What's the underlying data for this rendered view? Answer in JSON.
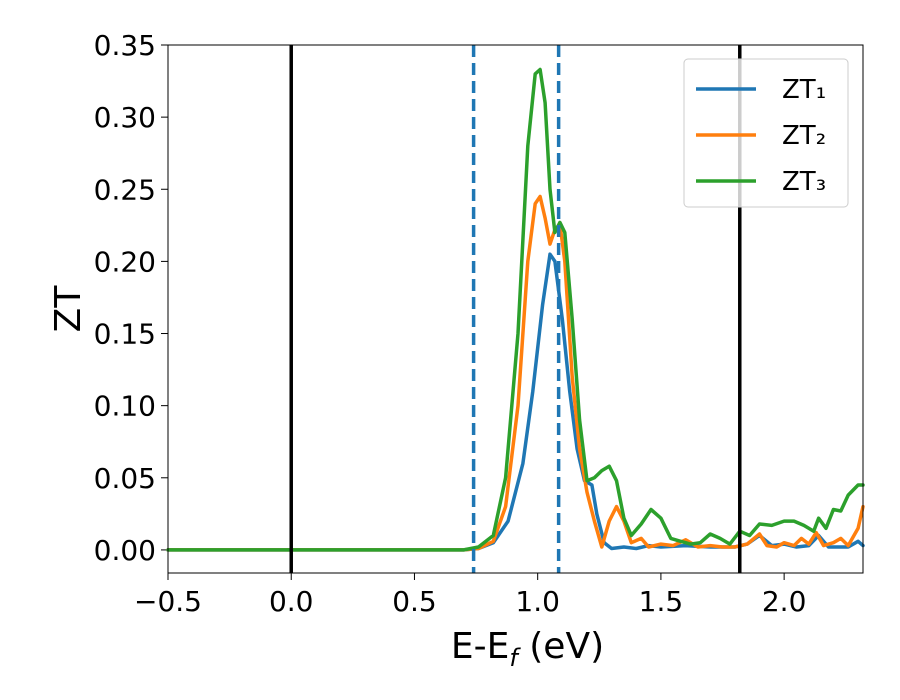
{
  "chart_data": {
    "type": "line",
    "xlabel": "E-E_f (eV)",
    "ylabel": "ZT",
    "xlim": [
      -0.5,
      2.32
    ],
    "ylim": [
      -0.016,
      0.35
    ],
    "x_ticks": [
      "−0.5",
      "0.0",
      "0.5",
      "1.0",
      "1.5",
      "2.0"
    ],
    "x_tick_values": [
      -0.5,
      0.0,
      0.5,
      1.0,
      1.5,
      2.0
    ],
    "y_ticks": [
      "0.00",
      "0.05",
      "0.10",
      "0.15",
      "0.20",
      "0.25",
      "0.30",
      "0.35"
    ],
    "y_tick_values": [
      0.0,
      0.05,
      0.1,
      0.15,
      0.2,
      0.25,
      0.3,
      0.35
    ],
    "legend_position": "top-right",
    "grid": false,
    "vertical_lines": [
      {
        "x": 0.0,
        "style": "solid",
        "color": "#000000"
      },
      {
        "x": 0.74,
        "style": "dashed",
        "color": "#1f77b4"
      },
      {
        "x": 1.085,
        "style": "dashed",
        "color": "#1f77b4"
      },
      {
        "x": 1.82,
        "style": "solid",
        "color": "#000000"
      }
    ],
    "series": [
      {
        "name": "ZT₁",
        "color": "#1f77b4",
        "points": [
          [
            -0.5,
            0
          ],
          [
            0.7,
            0
          ],
          [
            0.76,
            0.001
          ],
          [
            0.82,
            0.005
          ],
          [
            0.88,
            0.02
          ],
          [
            0.94,
            0.06
          ],
          [
            0.98,
            0.11
          ],
          [
            1.02,
            0.17
          ],
          [
            1.05,
            0.205
          ],
          [
            1.07,
            0.2
          ],
          [
            1.1,
            0.16
          ],
          [
            1.13,
            0.11
          ],
          [
            1.16,
            0.07
          ],
          [
            1.19,
            0.048
          ],
          [
            1.22,
            0.045
          ],
          [
            1.24,
            0.025
          ],
          [
            1.27,
            0.005
          ],
          [
            1.3,
            0.001
          ],
          [
            1.35,
            0.002
          ],
          [
            1.4,
            0.001
          ],
          [
            1.45,
            0.003
          ],
          [
            1.5,
            0.002
          ],
          [
            1.6,
            0.003
          ],
          [
            1.7,
            0.002
          ],
          [
            1.8,
            0.002
          ],
          [
            1.85,
            0.004
          ],
          [
            1.9,
            0.01
          ],
          [
            1.95,
            0.003
          ],
          [
            2.0,
            0.004
          ],
          [
            2.05,
            0.002
          ],
          [
            2.1,
            0.003
          ],
          [
            2.14,
            0.01
          ],
          [
            2.18,
            0.002
          ],
          [
            2.22,
            0.002
          ],
          [
            2.26,
            0.002
          ],
          [
            2.3,
            0.006
          ],
          [
            2.32,
            0.003
          ]
        ]
      },
      {
        "name": "ZT₂",
        "color": "#ff7f0e",
        "points": [
          [
            -0.5,
            0
          ],
          [
            0.7,
            0
          ],
          [
            0.76,
            0.001
          ],
          [
            0.82,
            0.006
          ],
          [
            0.87,
            0.03
          ],
          [
            0.92,
            0.1
          ],
          [
            0.96,
            0.2
          ],
          [
            0.99,
            0.24
          ],
          [
            1.01,
            0.245
          ],
          [
            1.03,
            0.23
          ],
          [
            1.05,
            0.212
          ],
          [
            1.07,
            0.222
          ],
          [
            1.09,
            0.226
          ],
          [
            1.11,
            0.2
          ],
          [
            1.14,
            0.12
          ],
          [
            1.17,
            0.07
          ],
          [
            1.2,
            0.04
          ],
          [
            1.23,
            0.02
          ],
          [
            1.26,
            0.002
          ],
          [
            1.29,
            0.02
          ],
          [
            1.32,
            0.03
          ],
          [
            1.35,
            0.02
          ],
          [
            1.38,
            0.005
          ],
          [
            1.42,
            0.008
          ],
          [
            1.45,
            0.002
          ],
          [
            1.5,
            0.004
          ],
          [
            1.55,
            0.003
          ],
          [
            1.6,
            0.007
          ],
          [
            1.65,
            0.002
          ],
          [
            1.7,
            0.003
          ],
          [
            1.75,
            0.002
          ],
          [
            1.8,
            0.002
          ],
          [
            1.85,
            0.004
          ],
          [
            1.9,
            0.011
          ],
          [
            1.93,
            0.003
          ],
          [
            1.97,
            0.002
          ],
          [
            2.0,
            0.005
          ],
          [
            2.04,
            0.003
          ],
          [
            2.07,
            0.008
          ],
          [
            2.1,
            0.004
          ],
          [
            2.13,
            0.012
          ],
          [
            2.16,
            0.003
          ],
          [
            2.2,
            0.005
          ],
          [
            2.23,
            0.008
          ],
          [
            2.26,
            0.003
          ],
          [
            2.3,
            0.015
          ],
          [
            2.32,
            0.03
          ]
        ]
      },
      {
        "name": "ZT₃",
        "color": "#2ca02c",
        "points": [
          [
            -0.5,
            0
          ],
          [
            0.7,
            0
          ],
          [
            0.76,
            0.002
          ],
          [
            0.82,
            0.01
          ],
          [
            0.87,
            0.05
          ],
          [
            0.92,
            0.15
          ],
          [
            0.96,
            0.28
          ],
          [
            0.99,
            0.33
          ],
          [
            1.01,
            0.333
          ],
          [
            1.03,
            0.31
          ],
          [
            1.05,
            0.25
          ],
          [
            1.07,
            0.22
          ],
          [
            1.09,
            0.227
          ],
          [
            1.11,
            0.22
          ],
          [
            1.14,
            0.16
          ],
          [
            1.17,
            0.09
          ],
          [
            1.2,
            0.048
          ],
          [
            1.23,
            0.05
          ],
          [
            1.26,
            0.055
          ],
          [
            1.29,
            0.058
          ],
          [
            1.32,
            0.048
          ],
          [
            1.35,
            0.022
          ],
          [
            1.38,
            0.01
          ],
          [
            1.42,
            0.018
          ],
          [
            1.46,
            0.028
          ],
          [
            1.5,
            0.022
          ],
          [
            1.54,
            0.008
          ],
          [
            1.58,
            0.006
          ],
          [
            1.62,
            0.004
          ],
          [
            1.66,
            0.005
          ],
          [
            1.7,
            0.011
          ],
          [
            1.74,
            0.008
          ],
          [
            1.78,
            0.004
          ],
          [
            1.82,
            0.013
          ],
          [
            1.86,
            0.01
          ],
          [
            1.9,
            0.018
          ],
          [
            1.95,
            0.017
          ],
          [
            2.0,
            0.02
          ],
          [
            2.04,
            0.02
          ],
          [
            2.08,
            0.017
          ],
          [
            2.12,
            0.013
          ],
          [
            2.14,
            0.022
          ],
          [
            2.17,
            0.015
          ],
          [
            2.2,
            0.028
          ],
          [
            2.23,
            0.027
          ],
          [
            2.26,
            0.038
          ],
          [
            2.3,
            0.045
          ],
          [
            2.32,
            0.045
          ]
        ]
      }
    ]
  }
}
